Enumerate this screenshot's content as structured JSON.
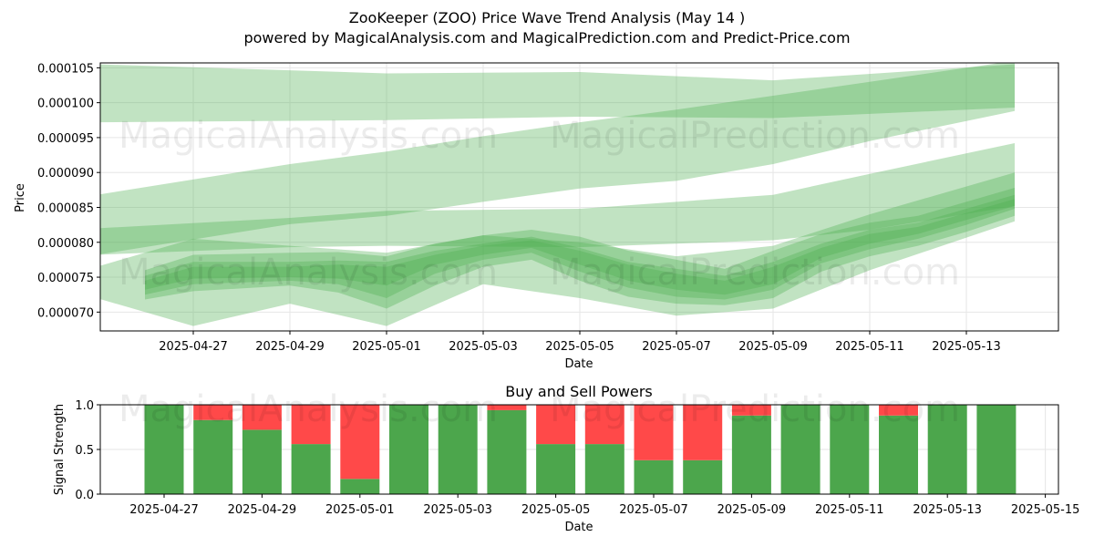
{
  "title": "ZooKeeper (ZOO) Price Wave Trend Analysis (May 14 )",
  "subtitle": "powered by MagicalAnalysis.com and MagicalPrediction.com and Predict-Price.com",
  "watermarks": [
    "MagicalAnalysis.com",
    "MagicalPrediction.com"
  ],
  "colors": {
    "band": "#4caf50",
    "bar_buy": "#4ca64c",
    "bar_sell": "#ff4949",
    "grid": "#e6e6e6"
  },
  "chart_data": [
    {
      "type": "area",
      "title": "",
      "xlabel": "Date",
      "ylabel": "Price",
      "x_ticks": [
        "2025-04-27",
        "2025-04-29",
        "2025-05-01",
        "2025-05-03",
        "2025-05-05",
        "2025-05-07",
        "2025-05-09",
        "2025-05-11",
        "2025-05-13"
      ],
      "y_ticks": [
        "0.000070",
        "0.000075",
        "0.000080",
        "0.000085",
        "0.000090",
        "0.000095",
        "0.000100",
        "0.000105"
      ],
      "ylim": [
        6.73e-05,
        0.0001057
      ],
      "grid": true,
      "series": [
        {
          "x": [
            "2025-04-25",
            "2025-05-01",
            "2025-05-05",
            "2025-05-09",
            "2025-05-14"
          ],
          "upper": [
            0.0001055,
            0.0001042,
            0.0001044,
            0.0001032,
            0.0001055
          ],
          "lower": [
            9.72e-05,
            9.75e-05,
            9.8e-05,
            9.78e-05,
            9.93e-05
          ]
        },
        {
          "x": [
            "2025-04-25",
            "2025-04-29",
            "2025-05-01",
            "2025-05-03",
            "2025-05-05",
            "2025-05-07",
            "2025-05-09",
            "2025-05-11",
            "2025-05-14"
          ],
          "upper": [
            8.68e-05,
            9.12e-05,
            9.3e-05,
            9.52e-05,
            9.72e-05,
            9.9e-05,
            0.000101,
            0.000103,
            0.000106
          ],
          "lower": [
            7.82e-05,
            8.26e-05,
            8.38e-05,
            8.58e-05,
            8.77e-05,
            8.88e-05,
            9.12e-05,
            9.45e-05,
            9.88e-05
          ]
        },
        {
          "x": [
            "2025-04-25",
            "2025-04-29",
            "2025-05-01",
            "2025-05-05",
            "2025-05-09",
            "2025-05-11",
            "2025-05-14"
          ],
          "upper": [
            8.2e-05,
            8.35e-05,
            8.45e-05,
            8.48e-05,
            8.68e-05,
            8.98e-05,
            9.42e-05
          ],
          "lower": [
            7.82e-05,
            7.93e-05,
            7.95e-05,
            7.93e-05,
            8.03e-05,
            8.18e-05,
            8.52e-05
          ]
        },
        {
          "x": [
            "2025-04-26",
            "2025-04-27",
            "2025-04-29",
            "2025-04-30",
            "2025-05-01",
            "2025-05-02",
            "2025-05-03",
            "2025-05-04",
            "2025-05-05",
            "2025-05-06",
            "2025-05-07",
            "2025-05-08",
            "2025-05-09",
            "2025-05-10",
            "2025-05-11",
            "2025-05-12",
            "2025-05-13",
            "2025-05-14"
          ],
          "upper": [
            7.6e-05,
            7.82e-05,
            7.85e-05,
            7.86e-05,
            7.8e-05,
            7.98e-05,
            8.1e-05,
            8.18e-05,
            8.08e-05,
            7.88e-05,
            7.75e-05,
            7.62e-05,
            7.88e-05,
            8.12e-05,
            8.28e-05,
            8.38e-05,
            8.58e-05,
            8.78e-05
          ],
          "lower": [
            7.18e-05,
            7.3e-05,
            7.38e-05,
            7.28e-05,
            7.05e-05,
            7.38e-05,
            7.65e-05,
            7.75e-05,
            7.45e-05,
            7.22e-05,
            7.12e-05,
            7.1e-05,
            7.2e-05,
            7.58e-05,
            7.8e-05,
            7.95e-05,
            8.15e-05,
            8.38e-05
          ]
        },
        {
          "x": [
            "2025-04-26",
            "2025-04-27",
            "2025-04-29",
            "2025-04-30",
            "2025-05-01",
            "2025-05-02",
            "2025-05-03",
            "2025-05-04",
            "2025-05-05",
            "2025-05-06",
            "2025-05-07",
            "2025-05-08",
            "2025-05-09",
            "2025-05-10",
            "2025-05-11",
            "2025-05-12",
            "2025-05-13",
            "2025-05-14"
          ],
          "upper": [
            7.52e-05,
            7.72e-05,
            7.72e-05,
            7.74e-05,
            7.72e-05,
            7.88e-05,
            7.98e-05,
            8.08e-05,
            7.92e-05,
            7.72e-05,
            7.62e-05,
            7.52e-05,
            7.72e-05,
            7.98e-05,
            8.18e-05,
            8.28e-05,
            8.48e-05,
            8.68e-05
          ],
          "lower": [
            7.25e-05,
            7.4e-05,
            7.45e-05,
            7.4e-05,
            7.2e-05,
            7.55e-05,
            7.75e-05,
            7.85e-05,
            7.58e-05,
            7.35e-05,
            7.22e-05,
            7.18e-05,
            7.32e-05,
            7.7e-05,
            7.9e-05,
            8.05e-05,
            8.25e-05,
            8.48e-05
          ]
        },
        {
          "x": [
            "2025-04-26",
            "2025-04-27",
            "2025-04-29",
            "2025-04-30",
            "2025-05-01",
            "2025-05-02",
            "2025-05-03",
            "2025-05-04",
            "2025-05-05",
            "2025-05-06",
            "2025-05-07",
            "2025-05-08",
            "2025-05-09",
            "2025-05-10",
            "2025-05-11",
            "2025-05-12",
            "2025-05-13",
            "2025-05-14"
          ],
          "upper": [
            7.45e-05,
            7.65e-05,
            7.65e-05,
            7.68e-05,
            7.65e-05,
            7.82e-05,
            7.95e-05,
            8.03e-05,
            7.88e-05,
            7.68e-05,
            7.55e-05,
            7.45e-05,
            7.65e-05,
            7.92e-05,
            8.12e-05,
            8.22e-05,
            8.42e-05,
            8.62e-05
          ],
          "lower": [
            7.32e-05,
            7.48e-05,
            7.5e-05,
            7.48e-05,
            7.38e-05,
            7.68e-05,
            7.82e-05,
            7.92e-05,
            7.68e-05,
            7.45e-05,
            7.32e-05,
            7.25e-05,
            7.4e-05,
            7.78e-05,
            7.98e-05,
            8.12e-05,
            8.32e-05,
            8.52e-05
          ]
        },
        {
          "x": [
            "2025-04-25",
            "2025-04-27",
            "2025-04-29",
            "2025-05-01",
            "2025-05-03",
            "2025-05-05",
            "2025-05-07",
            "2025-05-09",
            "2025-05-11",
            "2025-05-14"
          ],
          "upper": [
            7.65e-05,
            8.05e-05,
            7.95e-05,
            7.85e-05,
            8.1e-05,
            8e-05,
            7.8e-05,
            7.95e-05,
            8.4e-05,
            9e-05
          ],
          "lower": [
            7.2e-05,
            6.8e-05,
            7.12e-05,
            6.8e-05,
            7.4e-05,
            7.2e-05,
            6.95e-05,
            7.05e-05,
            7.6e-05,
            8.3e-05
          ]
        }
      ]
    },
    {
      "type": "bar",
      "title": "Buy and Sell Powers",
      "xlabel": "Date",
      "ylabel": "Signal Strength",
      "x_ticks": [
        "2025-04-27",
        "2025-04-29",
        "2025-05-01",
        "2025-05-03",
        "2025-05-05",
        "2025-05-07",
        "2025-05-09",
        "2025-05-11",
        "2025-05-13",
        "2025-05-15"
      ],
      "y_ticks": [
        "0.0",
        "0.5",
        "1.0"
      ],
      "ylim": [
        0,
        1
      ],
      "grid": true,
      "categories": [
        "2025-04-27",
        "2025-04-28",
        "2025-04-29",
        "2025-04-30",
        "2025-05-01",
        "2025-05-02",
        "2025-05-03",
        "2025-05-04",
        "2025-05-05",
        "2025-05-06",
        "2025-05-07",
        "2025-05-08",
        "2025-05-09",
        "2025-05-10",
        "2025-05-11",
        "2025-05-12",
        "2025-05-13",
        "2025-05-14"
      ],
      "series": [
        {
          "values": [
            1.0,
            0.83,
            0.72,
            0.56,
            0.17,
            1.0,
            1.0,
            0.94,
            0.56,
            0.56,
            0.38,
            0.38,
            0.88,
            1.0,
            1.0,
            0.88,
            1.0,
            1.0
          ]
        },
        {
          "values": [
            0.0,
            0.17,
            0.28,
            0.44,
            0.83,
            0.0,
            0.0,
            0.06,
            0.44,
            0.44,
            0.62,
            0.62,
            0.12,
            0.0,
            0.0,
            0.12,
            0.0,
            0.0
          ]
        }
      ]
    }
  ]
}
